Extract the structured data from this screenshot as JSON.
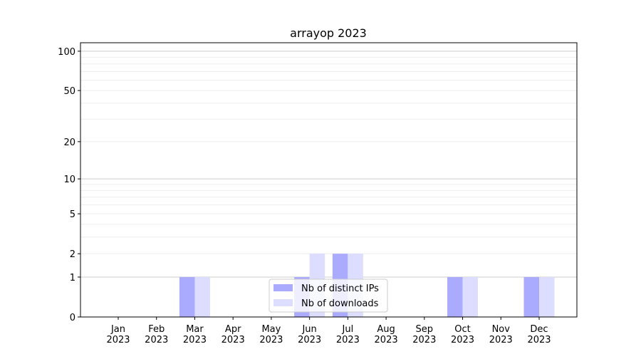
{
  "chart_data": {
    "type": "bar",
    "title": "arrayop 2023",
    "xlabel": "",
    "ylabel": "",
    "yscale": "log(1+y)",
    "ylim": [
      0,
      116
    ],
    "yticks": [
      0,
      1,
      2,
      5,
      10,
      20,
      50,
      100
    ],
    "ytick_labels": [
      "0",
      "1",
      "2",
      "5",
      "10",
      "20",
      "50",
      "100"
    ],
    "grid": true,
    "categories": [
      "Jan\n2023",
      "Feb\n2023",
      "Mar\n2023",
      "Apr\n2023",
      "May\n2023",
      "Jun\n2023",
      "Jul\n2023",
      "Aug\n2023",
      "Sep\n2023",
      "Oct\n2023",
      "Nov\n2023",
      "Dec\n2023"
    ],
    "series": [
      {
        "name": "Nb of distinct IPs",
        "color": "#aaaaff",
        "values": [
          0,
          0,
          1,
          0,
          0,
          1,
          2,
          0,
          0,
          1,
          0,
          1
        ]
      },
      {
        "name": "Nb of downloads",
        "color": "#ddddff",
        "values": [
          0,
          0,
          1,
          0,
          0,
          2,
          2,
          0,
          0,
          1,
          0,
          1
        ]
      }
    ],
    "legend_position": "lower-center"
  }
}
